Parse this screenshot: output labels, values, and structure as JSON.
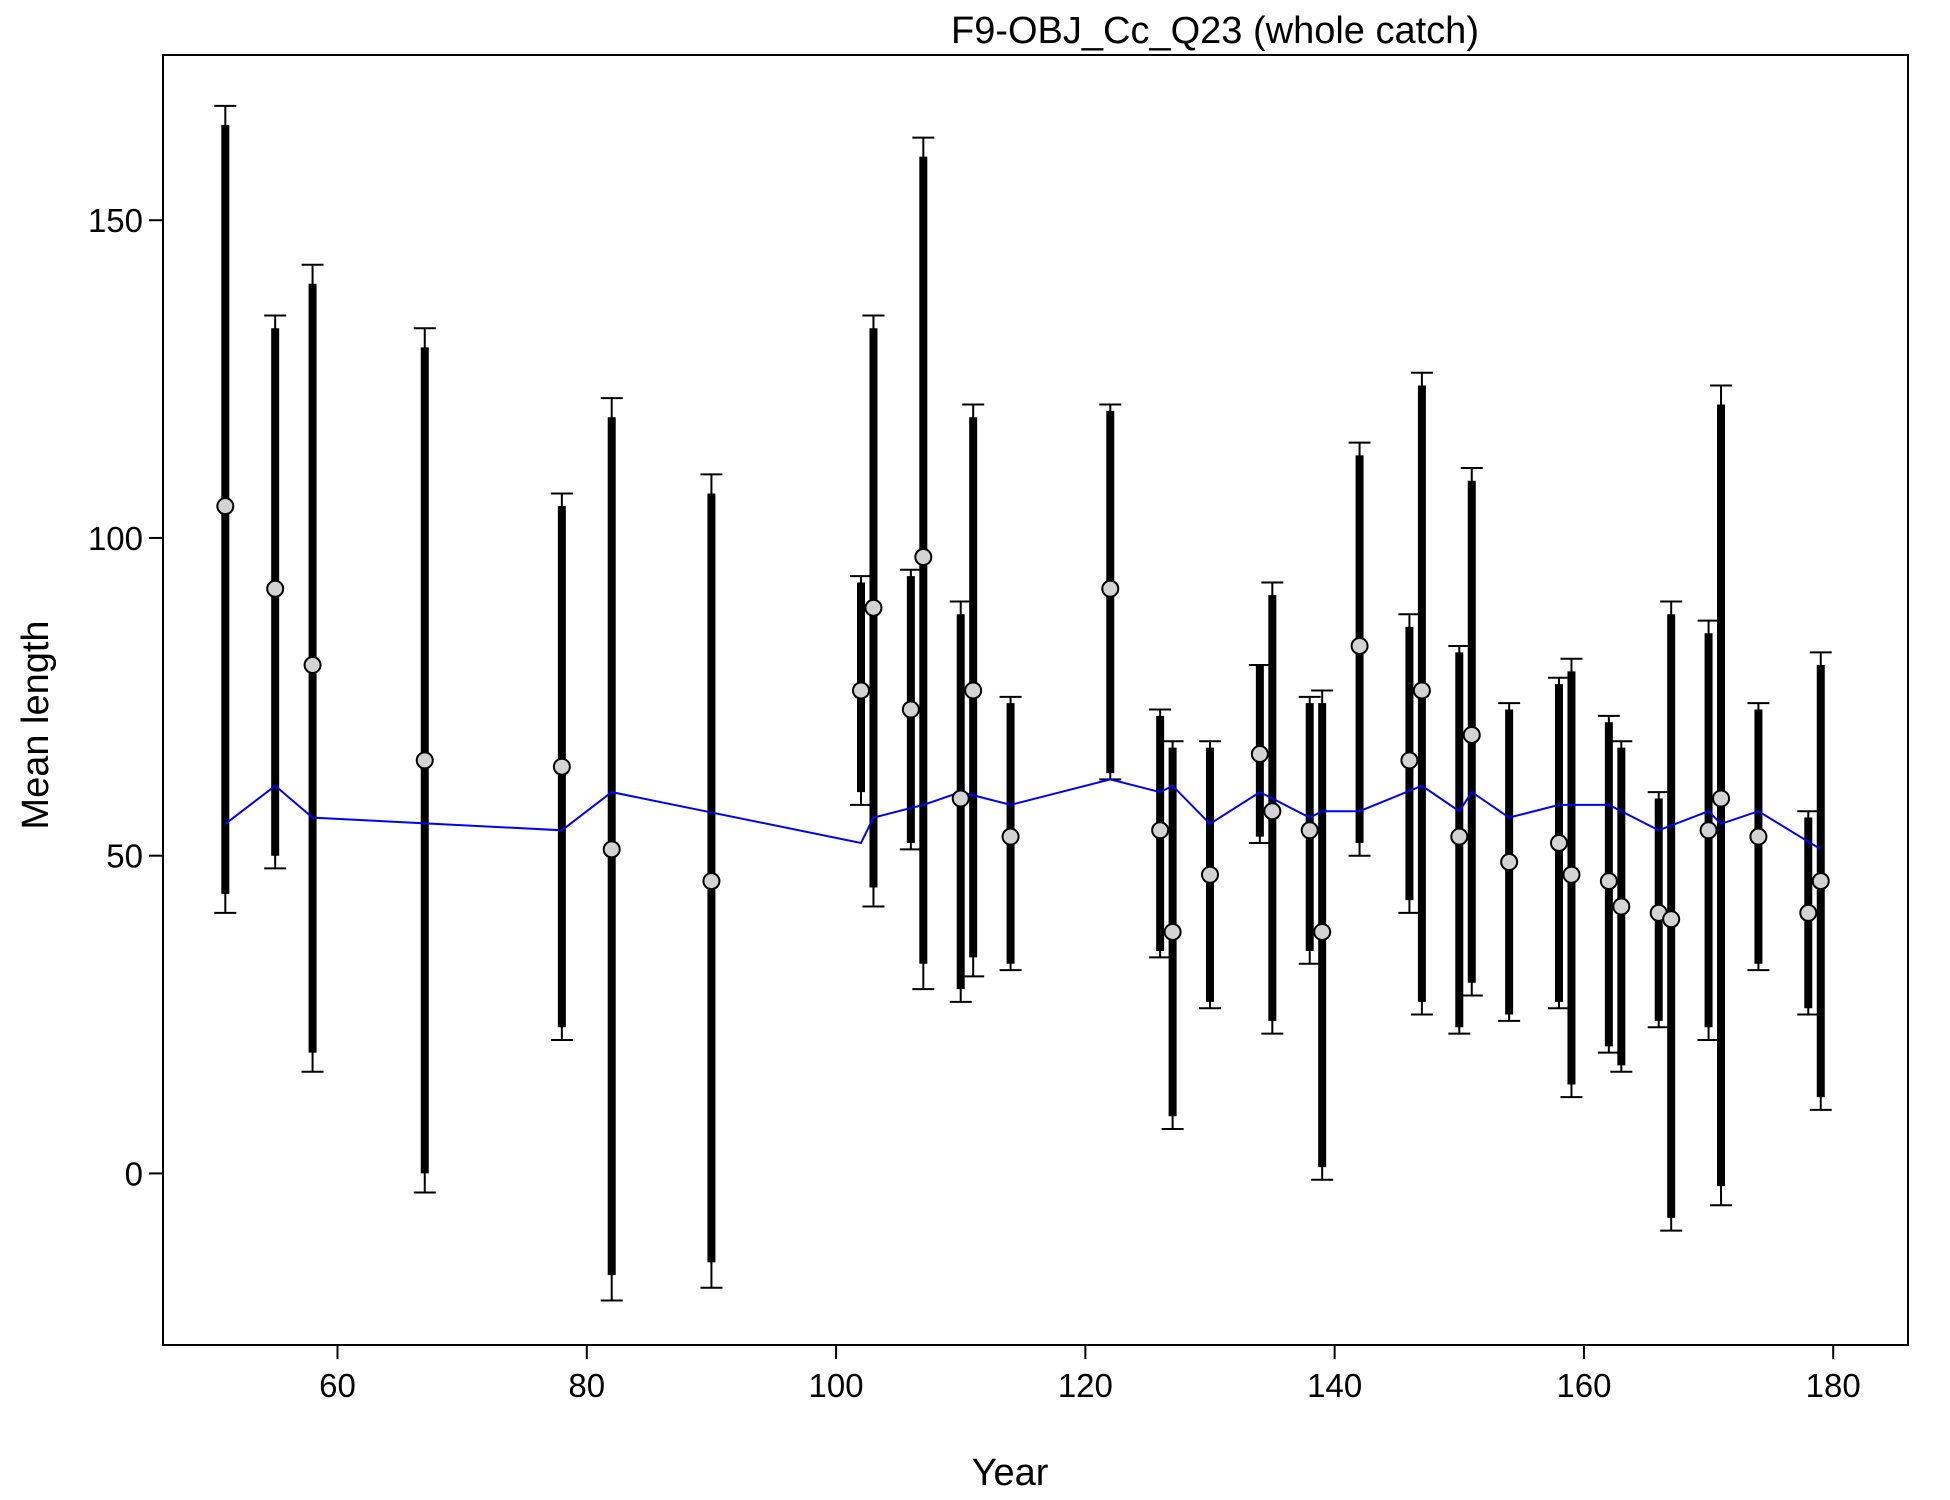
{
  "chart_data": {
    "type": "scatter",
    "title": "F9-OBJ_Cc_Q23 (whole catch)",
    "xlabel": "Year",
    "ylabel": "Mean length",
    "xlim": [
      46,
      186
    ],
    "ylim": [
      -27,
      176
    ],
    "x_ticks": [
      60,
      80,
      100,
      120,
      140,
      160,
      180
    ],
    "y_ticks": [
      0,
      50,
      100,
      150
    ],
    "grid": false,
    "legend": "none",
    "colors": {
      "points": "#d3d3d3",
      "bars": "#000000",
      "expected_line": "#0000ff"
    },
    "observations": [
      {
        "x": 51,
        "y": 105,
        "lo": 44,
        "hi": 165,
        "lo_outer": 41,
        "hi_outer": 168
      },
      {
        "x": 55,
        "y": 92,
        "lo": 50,
        "hi": 133,
        "lo_outer": 48,
        "hi_outer": 135
      },
      {
        "x": 58,
        "y": 80,
        "lo": 19,
        "hi": 140,
        "lo_outer": 16,
        "hi_outer": 143
      },
      {
        "x": 67,
        "y": 65,
        "lo": 0,
        "hi": 130,
        "lo_outer": -3,
        "hi_outer": 133
      },
      {
        "x": 78,
        "y": 64,
        "lo": 23,
        "hi": 105,
        "lo_outer": 21,
        "hi_outer": 107
      },
      {
        "x": 82,
        "y": 51,
        "lo": -16,
        "hi": 119,
        "lo_outer": -20,
        "hi_outer": 122
      },
      {
        "x": 90,
        "y": 46,
        "lo": -14,
        "hi": 107,
        "lo_outer": -18,
        "hi_outer": 110
      },
      {
        "x": 102,
        "y": 76,
        "lo": 60,
        "hi": 93,
        "lo_outer": 58,
        "hi_outer": 94
      },
      {
        "x": 103,
        "y": 89,
        "lo": 45,
        "hi": 133,
        "lo_outer": 42,
        "hi_outer": 135
      },
      {
        "x": 106,
        "y": 73,
        "lo": 52,
        "hi": 94,
        "lo_outer": 51,
        "hi_outer": 95
      },
      {
        "x": 107,
        "y": 97,
        "lo": 33,
        "hi": 160,
        "lo_outer": 29,
        "hi_outer": 163
      },
      {
        "x": 110,
        "y": 59,
        "lo": 29,
        "hi": 88,
        "lo_outer": 27,
        "hi_outer": 90
      },
      {
        "x": 111,
        "y": 76,
        "lo": 34,
        "hi": 119,
        "lo_outer": 31,
        "hi_outer": 121
      },
      {
        "x": 114,
        "y": 53,
        "lo": 33,
        "hi": 74,
        "lo_outer": 32,
        "hi_outer": 75
      },
      {
        "x": 122,
        "y": 92,
        "lo": 63,
        "hi": 120,
        "lo_outer": 62,
        "hi_outer": 121
      },
      {
        "x": 126,
        "y": 54,
        "lo": 35,
        "hi": 72,
        "lo_outer": 34,
        "hi_outer": 73
      },
      {
        "x": 127,
        "y": 38,
        "lo": 9,
        "hi": 67,
        "lo_outer": 7,
        "hi_outer": 68
      },
      {
        "x": 130,
        "y": 47,
        "lo": 27,
        "hi": 67,
        "lo_outer": 26,
        "hi_outer": 68
      },
      {
        "x": 134,
        "y": 66,
        "lo": 53,
        "hi": 80,
        "lo_outer": 52,
        "hi_outer": 80
      },
      {
        "x": 135,
        "y": 57,
        "lo": 24,
        "hi": 91,
        "lo_outer": 22,
        "hi_outer": 93
      },
      {
        "x": 138,
        "y": 54,
        "lo": 35,
        "hi": 74,
        "lo_outer": 33,
        "hi_outer": 75
      },
      {
        "x": 139,
        "y": 38,
        "lo": 1,
        "hi": 74,
        "lo_outer": -1,
        "hi_outer": 76
      },
      {
        "x": 142,
        "y": 83,
        "lo": 52,
        "hi": 113,
        "lo_outer": 50,
        "hi_outer": 115
      },
      {
        "x": 146,
        "y": 65,
        "lo": 43,
        "hi": 86,
        "lo_outer": 41,
        "hi_outer": 88
      },
      {
        "x": 147,
        "y": 76,
        "lo": 27,
        "hi": 124,
        "lo_outer": 25,
        "hi_outer": 126
      },
      {
        "x": 150,
        "y": 53,
        "lo": 23,
        "hi": 82,
        "lo_outer": 22,
        "hi_outer": 83
      },
      {
        "x": 151,
        "y": 69,
        "lo": 30,
        "hi": 109,
        "lo_outer": 28,
        "hi_outer": 111
      },
      {
        "x": 154,
        "y": 49,
        "lo": 25,
        "hi": 73,
        "lo_outer": 24,
        "hi_outer": 74
      },
      {
        "x": 158,
        "y": 52,
        "lo": 27,
        "hi": 77,
        "lo_outer": 26,
        "hi_outer": 78
      },
      {
        "x": 159,
        "y": 47,
        "lo": 14,
        "hi": 79,
        "lo_outer": 12,
        "hi_outer": 81
      },
      {
        "x": 162,
        "y": 46,
        "lo": 20,
        "hi": 71,
        "lo_outer": 19,
        "hi_outer": 72
      },
      {
        "x": 163,
        "y": 42,
        "lo": 17,
        "hi": 67,
        "lo_outer": 16,
        "hi_outer": 68
      },
      {
        "x": 166,
        "y": 41,
        "lo": 24,
        "hi": 59,
        "lo_outer": 23,
        "hi_outer": 60
      },
      {
        "x": 167,
        "y": 40,
        "lo": -7,
        "hi": 88,
        "lo_outer": -9,
        "hi_outer": 90
      },
      {
        "x": 170,
        "y": 54,
        "lo": 23,
        "hi": 85,
        "lo_outer": 21,
        "hi_outer": 87
      },
      {
        "x": 171,
        "y": 59,
        "lo": -2,
        "hi": 121,
        "lo_outer": -5,
        "hi_outer": 124
      },
      {
        "x": 174,
        "y": 53,
        "lo": 33,
        "hi": 73,
        "lo_outer": 32,
        "hi_outer": 74
      },
      {
        "x": 178,
        "y": 41,
        "lo": 26,
        "hi": 56,
        "lo_outer": 25,
        "hi_outer": 57
      },
      {
        "x": 179,
        "y": 46,
        "lo": 12,
        "hi": 80,
        "lo_outer": 10,
        "hi_outer": 82
      }
    ],
    "expected": {
      "x": [
        51,
        55,
        58,
        78,
        82,
        102,
        103,
        107,
        110,
        114,
        122,
        126,
        127,
        130,
        134,
        138,
        139,
        142,
        147,
        150,
        151,
        154,
        158,
        162,
        166,
        170,
        171,
        174,
        179
      ],
      "y": [
        55,
        61,
        56,
        54,
        60,
        52,
        56,
        58,
        60,
        58,
        62,
        60,
        61,
        55,
        60,
        56,
        57,
        57,
        61,
        57,
        60,
        56,
        58,
        58,
        54,
        57,
        55,
        57,
        51
      ]
    }
  }
}
